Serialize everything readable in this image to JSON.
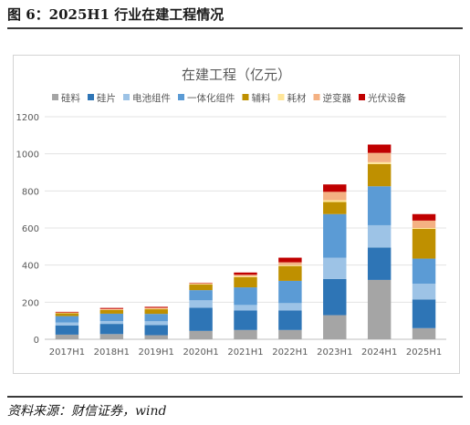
{
  "figure_title": "图 6：2025H1 行业在建工程情况",
  "source": "资料来源：财信证券，wind",
  "chart_data": {
    "type": "bar",
    "stacked": true,
    "title": "在建工程（亿元）",
    "xlabel": "",
    "ylabel": "",
    "ylim": [
      0,
      1200
    ],
    "yticks": [
      0,
      200,
      400,
      600,
      800,
      1000,
      1200
    ],
    "grid": true,
    "legend_position": "top",
    "categories": [
      "2017H1",
      "2018H1",
      "2019H1",
      "2020H1",
      "2021H1",
      "2022H1",
      "2023H1",
      "2024H1",
      "2025H1"
    ],
    "series": [
      {
        "name": "硅料",
        "color": "#a5a5a5",
        "values": [
          25,
          28,
          22,
          45,
          50,
          50,
          130,
          320,
          60
        ]
      },
      {
        "name": "硅片",
        "color": "#2e75b6",
        "values": [
          50,
          55,
          55,
          125,
          105,
          105,
          195,
          175,
          155
        ]
      },
      {
        "name": "电池组件",
        "color": "#9dc3e6",
        "values": [
          15,
          15,
          20,
          40,
          30,
          40,
          115,
          120,
          85
        ]
      },
      {
        "name": "一体化组件",
        "color": "#5b9bd5",
        "values": [
          35,
          40,
          40,
          55,
          95,
          120,
          235,
          210,
          135
        ]
      },
      {
        "name": "辅料",
        "color": "#bf9000",
        "values": [
          15,
          20,
          25,
          30,
          55,
          80,
          65,
          120,
          160
        ]
      },
      {
        "name": "耗材",
        "color": "#ffe699",
        "values": [
          2,
          2,
          3,
          3,
          5,
          5,
          10,
          10,
          5
        ]
      },
      {
        "name": "逆变器",
        "color": "#f4b183",
        "values": [
          3,
          4,
          5,
          5,
          8,
          15,
          45,
          50,
          40
        ]
      },
      {
        "name": "光伏设备",
        "color": "#c00000",
        "values": [
          3,
          5,
          5,
          2,
          12,
          25,
          40,
          45,
          35
        ]
      }
    ]
  }
}
